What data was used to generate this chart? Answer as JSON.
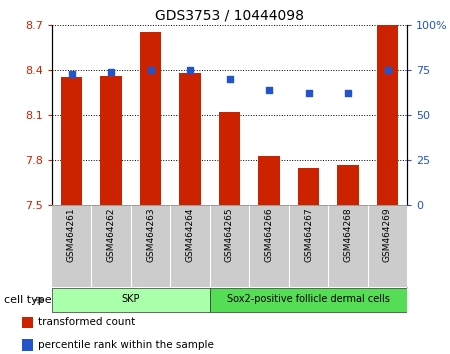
{
  "title": "GDS3753 / 10444098",
  "samples": [
    "GSM464261",
    "GSM464262",
    "GSM464263",
    "GSM464264",
    "GSM464265",
    "GSM464266",
    "GSM464267",
    "GSM464268",
    "GSM464269"
  ],
  "transformed_count": [
    8.35,
    8.36,
    8.65,
    8.38,
    8.12,
    7.83,
    7.75,
    7.77,
    8.7
  ],
  "percentile_rank": [
    73,
    74,
    75,
    75,
    70,
    64,
    62,
    62,
    75
  ],
  "ylim_left": [
    7.5,
    8.7
  ],
  "ylim_right": [
    0,
    100
  ],
  "yticks_left": [
    7.5,
    7.8,
    8.1,
    8.4,
    8.7
  ],
  "ytick_labels_left": [
    "7.5",
    "7.8",
    "8.1",
    "8.4",
    "8.7"
  ],
  "yticks_right": [
    0,
    25,
    50,
    75,
    100
  ],
  "ytick_labels_right": [
    "0",
    "25",
    "50",
    "75",
    "100%"
  ],
  "bar_color": "#cc2200",
  "dot_color": "#2255cc",
  "cell_types": [
    {
      "label": "SKP",
      "start": 0,
      "end": 4,
      "color": "#aaffaa"
    },
    {
      "label": "Sox2-positive follicle dermal cells",
      "start": 4,
      "end": 9,
      "color": "#55dd55"
    }
  ],
  "cell_type_label": "cell type",
  "legend_items": [
    {
      "color": "#cc2200",
      "label": "transformed count"
    },
    {
      "color": "#2255cc",
      "label": "percentile rank within the sample"
    }
  ],
  "bar_width": 0.55,
  "grid_color": "#000000",
  "bg_color": "#ffffff",
  "xtick_bg": "#cccccc",
  "ylabel_left_color": "#cc2200",
  "ylabel_right_color": "#2255cc"
}
